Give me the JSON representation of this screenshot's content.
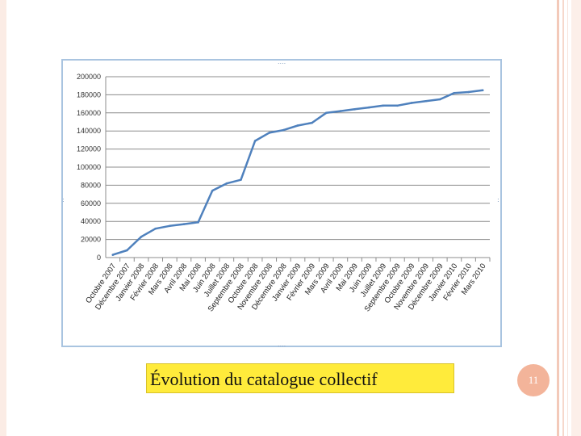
{
  "slide": {
    "caption": "Évolution du catalogue collectif",
    "page_number": "11"
  },
  "chart_data": {
    "type": "line",
    "title": "",
    "xlabel": "",
    "ylabel": "",
    "ylim": [
      0,
      200000
    ],
    "yticks": [
      0,
      20000,
      40000,
      60000,
      80000,
      100000,
      120000,
      140000,
      160000,
      180000,
      200000
    ],
    "ytick_labels": [
      "0",
      "20000",
      "40000",
      "60000",
      "80000",
      "100000",
      "120000",
      "140000",
      "160000",
      "180000",
      "200000"
    ],
    "grid": true,
    "legend": "none",
    "line_color": "#4f81bd",
    "categories": [
      "Octobre 2007",
      "Décembre 2007",
      "Janvier 2008",
      "Février 2008",
      "Mars 2008",
      "Avril 2008",
      "Mai 2008",
      "Juin 2008",
      "Juillet 2008",
      "Septembre 2008",
      "Octobre 2008",
      "Novembre 2008",
      "Décembre 2008",
      "Janvier 2009",
      "Février 2009",
      "Mars 2009",
      "Avril 2009",
      "Mai 2009",
      "Juin 2009",
      "Juillet 2009",
      "Septembre 2009",
      "Octobre 2009",
      "Novembre 2009",
      "Décembre 2009",
      "Janvier 2010",
      "Février 2010",
      "Mars 2010"
    ],
    "values": [
      3000,
      8000,
      23000,
      32000,
      35000,
      37000,
      39000,
      74000,
      82000,
      86000,
      129000,
      138000,
      141000,
      146000,
      149000,
      160000,
      162000,
      164000,
      166000,
      168000,
      168000,
      171000,
      173000,
      175000,
      182000,
      183000,
      185000
    ]
  }
}
